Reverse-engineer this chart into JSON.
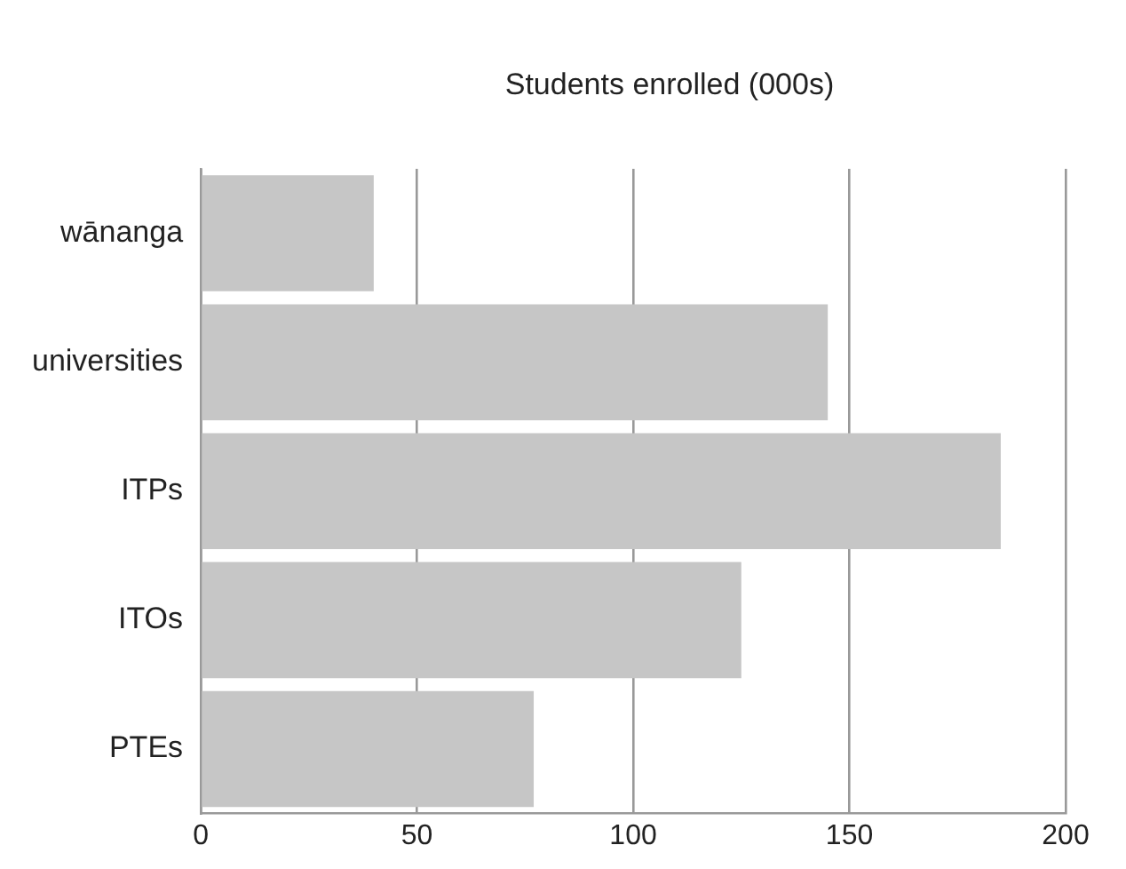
{
  "chart_data": {
    "type": "bar",
    "orientation": "horizontal",
    "title": "Students enrolled (000s)",
    "categories": [
      "wānanga",
      "universities",
      "ITPs",
      "ITOs",
      "PTEs"
    ],
    "values": [
      40,
      145,
      185,
      125,
      77
    ],
    "color": "#c6c6c6",
    "xlim": [
      0,
      200
    ],
    "xticks": [
      0,
      50,
      100,
      150,
      200
    ],
    "grid": "x",
    "legend": false
  }
}
